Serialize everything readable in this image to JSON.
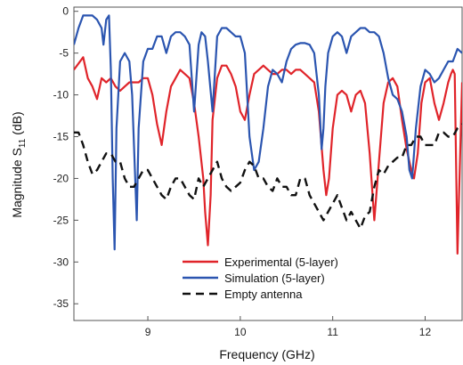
{
  "chart_data": {
    "type": "line",
    "xlabel": "Frequency (GHz)",
    "ylabel_main": "Magnitude S",
    "ylabel_sub": "11",
    "ylabel_unit": "(dB)",
    "xlim": [
      8.2,
      12.4
    ],
    "ylim": [
      -37,
      0.5
    ],
    "xticks": [
      9,
      10,
      11,
      12
    ],
    "yticks": [
      0,
      -5,
      -10,
      -15,
      -20,
      -25,
      -30,
      -35
    ],
    "legend_position": "bottom-center",
    "series": [
      {
        "name": "Experimental (5-layer)",
        "color": "#e0242a",
        "dash": "solid",
        "x": [
          8.2,
          8.3,
          8.35,
          8.4,
          8.45,
          8.5,
          8.55,
          8.6,
          8.65,
          8.7,
          8.75,
          8.8,
          8.85,
          8.9,
          8.95,
          9.0,
          9.05,
          9.1,
          9.15,
          9.2,
          9.25,
          9.3,
          9.35,
          9.4,
          9.45,
          9.5,
          9.55,
          9.6,
          9.62,
          9.65,
          9.68,
          9.7,
          9.75,
          9.8,
          9.85,
          9.9,
          9.95,
          10.0,
          10.05,
          10.1,
          10.15,
          10.2,
          10.25,
          10.3,
          10.35,
          10.4,
          10.45,
          10.5,
          10.55,
          10.6,
          10.65,
          10.7,
          10.75,
          10.8,
          10.85,
          10.9,
          10.93,
          10.96,
          11.0,
          11.05,
          11.1,
          11.15,
          11.2,
          11.25,
          11.3,
          11.35,
          11.4,
          11.45,
          11.5,
          11.55,
          11.6,
          11.65,
          11.7,
          11.75,
          11.8,
          11.85,
          11.88,
          11.92,
          11.96,
          12.0,
          12.05,
          12.1,
          12.15,
          12.2,
          12.25,
          12.28,
          12.3,
          12.32,
          12.35,
          12.4
        ],
        "values": [
          -7,
          -5.5,
          -8,
          -9,
          -10.5,
          -8,
          -8.5,
          -8,
          -9,
          -9.5,
          -9,
          -8.5,
          -8.5,
          -8.5,
          -8,
          -8,
          -10,
          -13.5,
          -16,
          -12,
          -9,
          -8,
          -7,
          -7.5,
          -8,
          -11,
          -15,
          -20,
          -24,
          -28,
          -22,
          -13,
          -8,
          -6.5,
          -6.5,
          -7.5,
          -9,
          -12,
          -13,
          -10,
          -7.5,
          -7,
          -6.5,
          -7,
          -7.5,
          -7.5,
          -7,
          -7,
          -7.5,
          -7,
          -7,
          -7.5,
          -8,
          -8.5,
          -12,
          -19,
          -22,
          -20,
          -14,
          -10,
          -9.5,
          -10,
          -12,
          -10,
          -9.5,
          -11,
          -17,
          -25,
          -18,
          -11,
          -8.5,
          -8,
          -9,
          -13,
          -16.5,
          -19,
          -20,
          -17,
          -11,
          -8.5,
          -8,
          -11,
          -13,
          -11,
          -8.5,
          -7.5,
          -7,
          -7.5,
          -29,
          -8.5
        ]
      },
      {
        "name": "Simulation (5-layer)",
        "color": "#2b55b0",
        "dash": "solid",
        "x": [
          8.2,
          8.25,
          8.3,
          8.35,
          8.4,
          8.45,
          8.5,
          8.52,
          8.55,
          8.58,
          8.6,
          8.62,
          8.64,
          8.66,
          8.7,
          8.75,
          8.8,
          8.83,
          8.86,
          8.88,
          8.9,
          8.95,
          9.0,
          9.05,
          9.1,
          9.15,
          9.2,
          9.25,
          9.3,
          9.35,
          9.4,
          9.45,
          9.5,
          9.55,
          9.58,
          9.62,
          9.65,
          9.7,
          9.75,
          9.8,
          9.85,
          9.9,
          9.95,
          10.0,
          10.05,
          10.1,
          10.15,
          10.2,
          10.25,
          10.3,
          10.35,
          10.4,
          10.45,
          10.5,
          10.55,
          10.6,
          10.65,
          10.7,
          10.75,
          10.8,
          10.85,
          10.88,
          10.9,
          10.92,
          10.95,
          11.0,
          11.05,
          11.1,
          11.15,
          11.2,
          11.25,
          11.3,
          11.35,
          11.4,
          11.45,
          11.5,
          11.55,
          11.6,
          11.65,
          11.7,
          11.75,
          11.8,
          11.83,
          11.86,
          11.9,
          11.95,
          12.0,
          12.05,
          12.1,
          12.15,
          12.2,
          12.25,
          12.3,
          12.35,
          12.4
        ],
        "values": [
          -4,
          -2,
          -0.5,
          -0.5,
          -0.5,
          -1,
          -2,
          -4,
          -1,
          -0.5,
          -7,
          -20,
          -28.5,
          -14,
          -6,
          -5,
          -6,
          -10,
          -19,
          -25,
          -14,
          -6,
          -4.5,
          -4.5,
          -3,
          -3,
          -5,
          -3,
          -2.5,
          -2.5,
          -3,
          -4,
          -12,
          -4,
          -2.5,
          -3,
          -6,
          -12,
          -3,
          -2,
          -2,
          -2.5,
          -3,
          -3,
          -5,
          -15,
          -19,
          -18,
          -14,
          -9,
          -7,
          -7.5,
          -8.5,
          -6,
          -4.5,
          -4,
          -3.8,
          -3.8,
          -4,
          -5,
          -10,
          -16.5,
          -14,
          -9,
          -5,
          -3,
          -2.5,
          -3,
          -5,
          -3,
          -2.5,
          -2,
          -2,
          -2.5,
          -2.5,
          -3,
          -5,
          -8,
          -10,
          -10.5,
          -12,
          -15,
          -19,
          -20,
          -14,
          -9,
          -7,
          -7.5,
          -8.5,
          -8,
          -7,
          -6,
          -6,
          -4.5,
          -5
        ]
      },
      {
        "name": "Empty antenna",
        "color": "#111111",
        "dash": "dashed",
        "x": [
          8.2,
          8.25,
          8.3,
          8.35,
          8.4,
          8.45,
          8.5,
          8.55,
          8.6,
          8.65,
          8.7,
          8.75,
          8.8,
          8.85,
          8.9,
          8.95,
          9.0,
          9.05,
          9.1,
          9.15,
          9.2,
          9.25,
          9.3,
          9.35,
          9.4,
          9.45,
          9.5,
          9.55,
          9.6,
          9.65,
          9.7,
          9.75,
          9.8,
          9.85,
          9.9,
          9.95,
          10.0,
          10.05,
          10.1,
          10.15,
          10.2,
          10.25,
          10.3,
          10.35,
          10.4,
          10.45,
          10.5,
          10.55,
          10.6,
          10.65,
          10.7,
          10.75,
          10.8,
          10.85,
          10.9,
          10.95,
          11.0,
          11.05,
          11.1,
          11.15,
          11.2,
          11.25,
          11.3,
          11.35,
          11.4,
          11.45,
          11.5,
          11.55,
          11.6,
          11.65,
          11.7,
          11.75,
          11.8,
          11.85,
          11.9,
          11.95,
          12.0,
          12.05,
          12.1,
          12.15,
          12.2,
          12.25,
          12.3,
          12.35,
          12.4
        ],
        "values": [
          -14.5,
          -14.5,
          -16,
          -18,
          -19.5,
          -19,
          -18,
          -17,
          -17,
          -18,
          -18,
          -20,
          -21,
          -21,
          -20,
          -19,
          -19,
          -20,
          -21,
          -22,
          -22.5,
          -21,
          -20,
          -20,
          -21,
          -22,
          -22.5,
          -20,
          -21,
          -20,
          -19,
          -18,
          -20,
          -21,
          -21.5,
          -21,
          -20.5,
          -19,
          -18,
          -18.5,
          -20,
          -20,
          -21,
          -21.5,
          -20,
          -21,
          -21,
          -22,
          -22,
          -20,
          -20,
          -22,
          -23,
          -24,
          -25,
          -24,
          -23,
          -22,
          -23.5,
          -25,
          -24,
          -25,
          -26,
          -24.5,
          -24,
          -21,
          -19,
          -19.5,
          -18.5,
          -18,
          -17.5,
          -17.5,
          -16,
          -16,
          -15,
          -15,
          -16,
          -16,
          -16,
          -14.5,
          -14.5,
          -15,
          -15,
          -14,
          -13.5
        ]
      }
    ]
  }
}
